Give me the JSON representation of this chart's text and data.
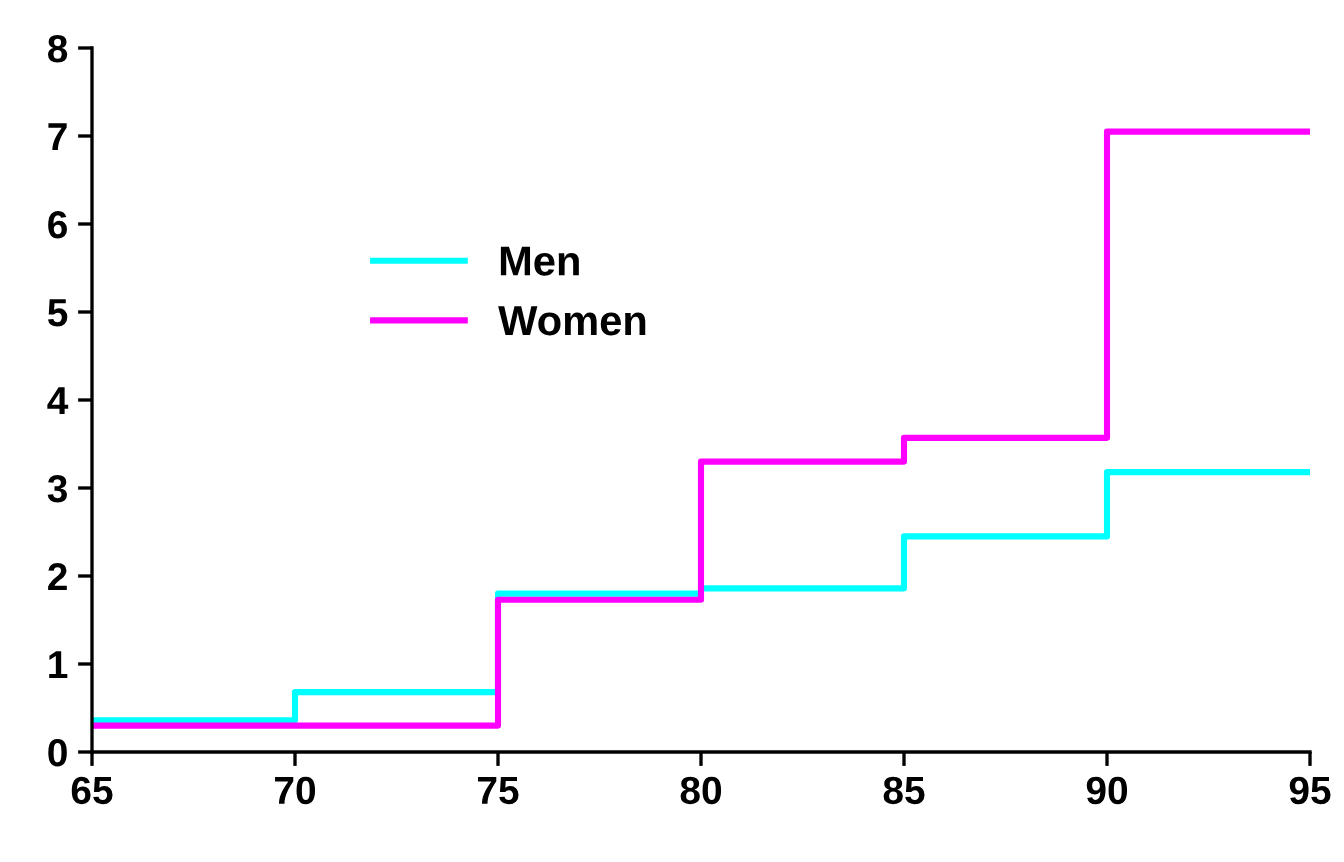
{
  "chart_data": {
    "type": "step",
    "x": [
      65,
      70,
      75,
      80,
      85,
      90,
      95
    ],
    "series": [
      {
        "name": "Men",
        "color": "#00ffff",
        "values": [
          0.36,
          0.68,
          1.8,
          1.86,
          2.45,
          3.18,
          3.18
        ]
      },
      {
        "name": "Women",
        "color": "#ff00ff",
        "values": [
          0.3,
          0.3,
          1.73,
          3.3,
          3.57,
          7.05,
          7.05
        ]
      }
    ],
    "xlim": [
      65,
      95
    ],
    "xticks": [
      65,
      70,
      75,
      80,
      85,
      90,
      95
    ],
    "ylim": [
      0,
      8
    ],
    "yticks": [
      0,
      1,
      2,
      3,
      4,
      5,
      6,
      7,
      8
    ],
    "grid": false,
    "legend": "top left"
  }
}
